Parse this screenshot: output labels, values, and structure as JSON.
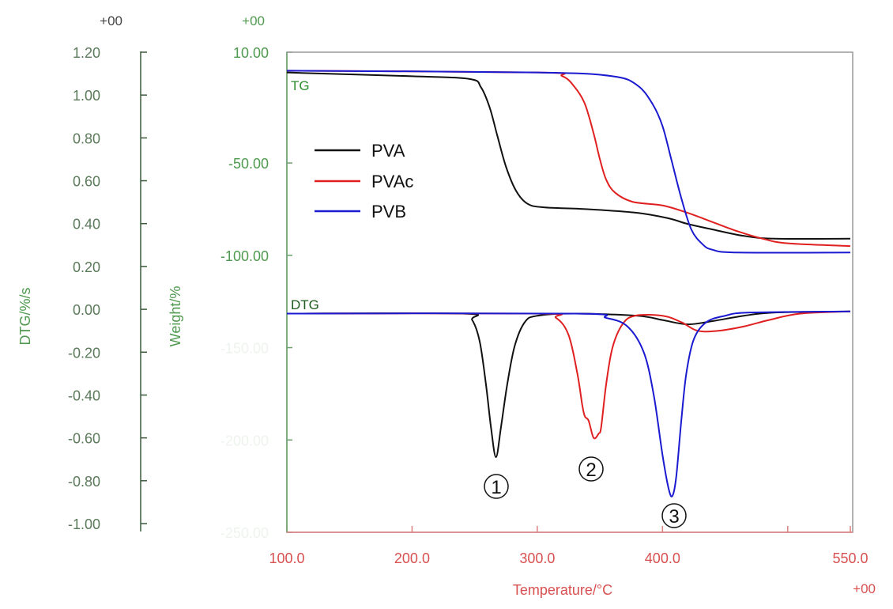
{
  "chart_data": {
    "type": "line",
    "x_axis": {
      "label": "Temperature/°C",
      "exponent": "+00",
      "range": [
        100,
        550
      ],
      "ticks": [
        100,
        200,
        300,
        400,
        500,
        550
      ],
      "tick_labels": [
        "100.0",
        "200.0",
        "300.0",
        "400.0",
        "",
        "550.0"
      ]
    },
    "dtg_axis": {
      "label": "DTG/%/s",
      "exponent": "+00",
      "range": [
        -1.0,
        1.2
      ],
      "ticks": [
        1.2,
        1.0,
        0.8,
        0.6,
        0.4,
        0.2,
        0.0,
        -0.2,
        -0.4,
        -0.6,
        -0.8,
        -1.0
      ],
      "tick_labels": [
        "1.20",
        "1.00",
        "0.80",
        "0.60",
        "0.40",
        "0.20",
        "0.00",
        "-0.20",
        "-0.40",
        "-0.60",
        "-0.80",
        "-1.00"
      ]
    },
    "weight_axis": {
      "label": "Weight/%",
      "exponent": "+00",
      "range": [
        -250,
        10
      ],
      "ticks": [
        10,
        -50,
        -100,
        -150,
        -200,
        -250
      ],
      "tick_labels": [
        "10.00",
        "-50.00",
        "-100.00",
        "-150.00",
        "-200.00",
        "-250.00"
      ]
    },
    "curve_labels": {
      "tg": "TG",
      "dtg": "DTG"
    },
    "legend": {
      "position": "upper-left"
    },
    "series": [
      {
        "name": "PVA",
        "color": "#111111",
        "tg": [
          [
            100,
            -1
          ],
          [
            200,
            -3
          ],
          [
            246,
            -4.5
          ],
          [
            255,
            -9
          ],
          [
            262,
            -20
          ],
          [
            268,
            -35
          ],
          [
            275,
            -52
          ],
          [
            283,
            -65
          ],
          [
            292,
            -72
          ],
          [
            305,
            -74
          ],
          [
            340,
            -75
          ],
          [
            380,
            -77
          ],
          [
            405,
            -80
          ],
          [
            420,
            -83
          ],
          [
            440,
            -86
          ],
          [
            465,
            -89.5
          ],
          [
            490,
            -91
          ],
          [
            550,
            -91
          ]
        ],
        "dtg": [
          [
            100,
            -0.02
          ],
          [
            240,
            -0.02
          ],
          [
            248,
            -0.05
          ],
          [
            254,
            -0.15
          ],
          [
            259,
            -0.35
          ],
          [
            263,
            -0.55
          ],
          [
            267,
            -0.69
          ],
          [
            271,
            -0.55
          ],
          [
            276,
            -0.35
          ],
          [
            282,
            -0.17
          ],
          [
            290,
            -0.06
          ],
          [
            300,
            -0.03
          ],
          [
            330,
            -0.02
          ],
          [
            380,
            -0.03
          ],
          [
            400,
            -0.05
          ],
          [
            420,
            -0.07
          ],
          [
            440,
            -0.055
          ],
          [
            465,
            -0.03
          ],
          [
            490,
            -0.015
          ],
          [
            550,
            -0.01
          ]
        ]
      },
      {
        "name": "PVAc",
        "color": "#e02020",
        "tg": [
          [
            100,
            0
          ],
          [
            300,
            -1
          ],
          [
            320,
            -3
          ],
          [
            330,
            -9
          ],
          [
            338,
            -18
          ],
          [
            345,
            -34
          ],
          [
            350,
            -48
          ],
          [
            355,
            -59
          ],
          [
            362,
            -66
          ],
          [
            376,
            -71
          ],
          [
            400,
            -73
          ],
          [
            420,
            -77
          ],
          [
            440,
            -82
          ],
          [
            460,
            -87
          ],
          [
            480,
            -91
          ],
          [
            500,
            -93.5
          ],
          [
            550,
            -95
          ]
        ],
        "dtg": [
          [
            100,
            -0.02
          ],
          [
            300,
            -0.02
          ],
          [
            315,
            -0.04
          ],
          [
            325,
            -0.12
          ],
          [
            332,
            -0.3
          ],
          [
            336,
            -0.45
          ],
          [
            338,
            -0.5
          ],
          [
            341,
            -0.52
          ],
          [
            345,
            -0.6
          ],
          [
            349,
            -0.58
          ],
          [
            351,
            -0.55
          ],
          [
            355,
            -0.35
          ],
          [
            360,
            -0.18
          ],
          [
            368,
            -0.07
          ],
          [
            378,
            -0.03
          ],
          [
            400,
            -0.03
          ],
          [
            415,
            -0.06
          ],
          [
            428,
            -0.1
          ],
          [
            445,
            -0.1
          ],
          [
            465,
            -0.08
          ],
          [
            485,
            -0.05
          ],
          [
            510,
            -0.02
          ],
          [
            550,
            -0.01
          ]
        ]
      },
      {
        "name": "PVB",
        "color": "#1a1ad0",
        "tg": [
          [
            100,
            0
          ],
          [
            300,
            -1
          ],
          [
            360,
            -3
          ],
          [
            380,
            -8
          ],
          [
            392,
            -18
          ],
          [
            400,
            -30
          ],
          [
            407,
            -48
          ],
          [
            415,
            -69
          ],
          [
            423,
            -86
          ],
          [
            432,
            -94
          ],
          [
            440,
            -97
          ],
          [
            460,
            -98.5
          ],
          [
            550,
            -98.5
          ]
        ],
        "dtg": [
          [
            100,
            -0.02
          ],
          [
            330,
            -0.02
          ],
          [
            355,
            -0.04
          ],
          [
            372,
            -0.08
          ],
          [
            385,
            -0.2
          ],
          [
            393,
            -0.4
          ],
          [
            400,
            -0.68
          ],
          [
            405,
            -0.84
          ],
          [
            408,
            -0.87
          ],
          [
            411,
            -0.78
          ],
          [
            415,
            -0.52
          ],
          [
            419,
            -0.3
          ],
          [
            425,
            -0.14
          ],
          [
            435,
            -0.06
          ],
          [
            450,
            -0.03
          ],
          [
            470,
            -0.015
          ],
          [
            550,
            -0.01
          ]
        ]
      }
    ],
    "peak_annotations": [
      {
        "label": "①",
        "series": "PVA",
        "x": 267
      },
      {
        "label": "②",
        "series": "PVAc",
        "x": 345
      },
      {
        "label": "③",
        "series": "PVB",
        "x": 408
      }
    ]
  },
  "colors": {
    "green_axis": "#4f9a4f",
    "dtg_text": "#5a7a5a",
    "x_axis": "#d85050",
    "frame": "#999999"
  }
}
